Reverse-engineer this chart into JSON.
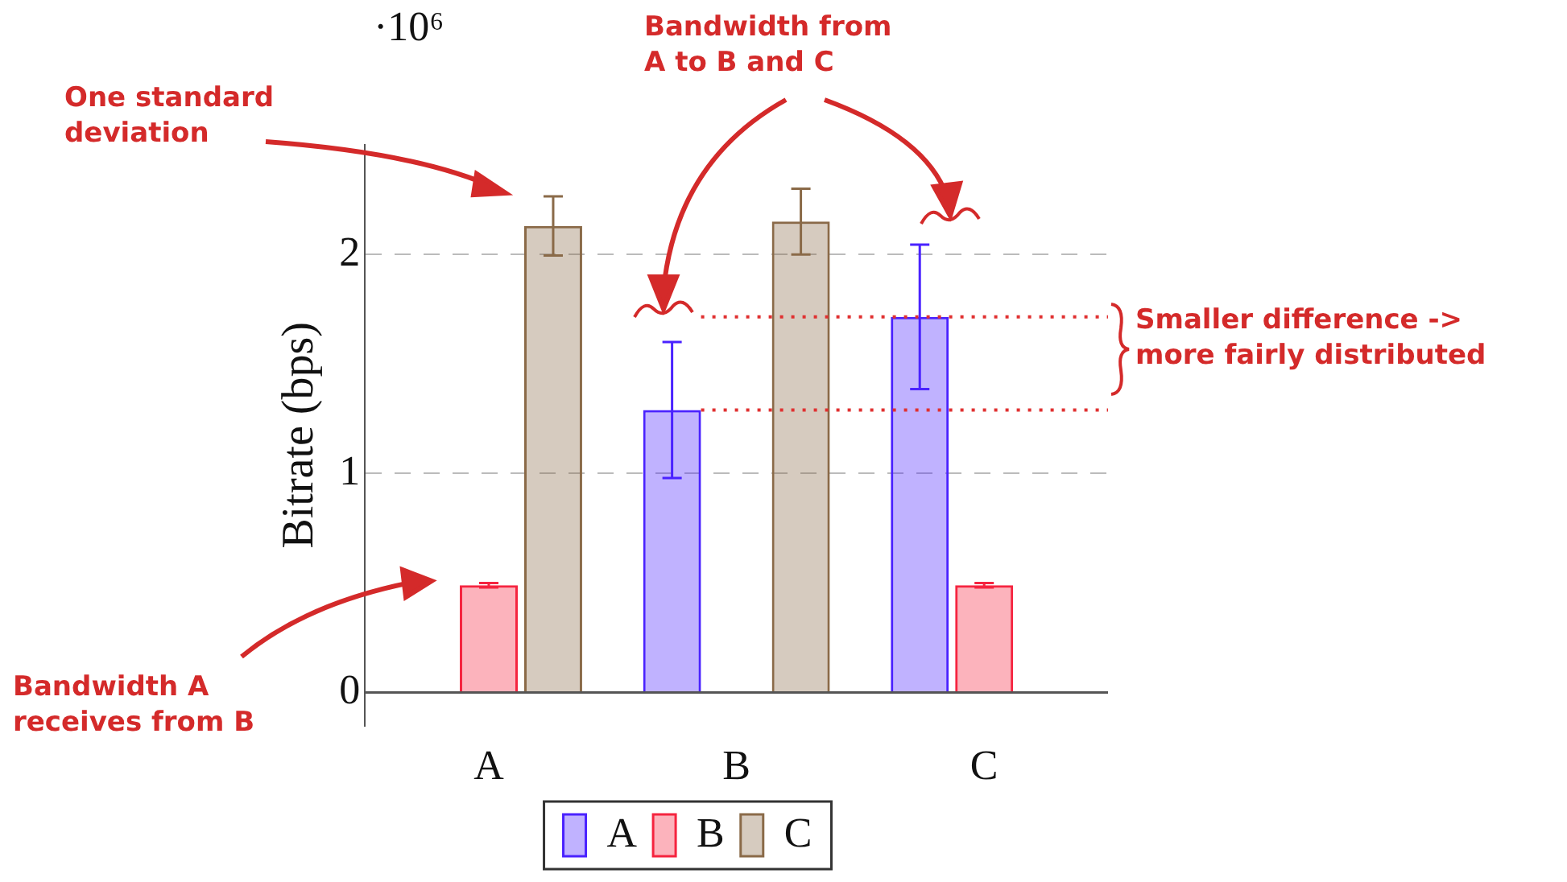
{
  "chart_data": {
    "type": "bar",
    "ylabel": "Bitrate (bps)",
    "categories": [
      "A",
      "B",
      "C"
    ],
    "series": [
      {
        "name": "A",
        "color": "#4a22ff",
        "values": [
          0,
          1.29,
          1.715
        ],
        "errors": [
          null,
          0.31,
          0.33
        ]
      },
      {
        "name": "B",
        "color": "#f5243f",
        "values": [
          0.49,
          0,
          0.49
        ],
        "errors": [
          0.01,
          null,
          0.01
        ]
      },
      {
        "name": "C",
        "color": "#8a6a48",
        "values": [
          2.13,
          2.15,
          0
        ],
        "errors": [
          0.135,
          0.15,
          null
        ]
      }
    ],
    "ylim": [
      -0.15,
      2.5
    ],
    "yticks": [
      0,
      1,
      2
    ],
    "grid": "y",
    "legend": "bottom",
    "ref_lines": [
      {
        "axis": "y",
        "value": 1.29,
        "color": "#e03030",
        "line_style": "dotted"
      },
      {
        "axis": "y",
        "value": 1.715,
        "color": "#e03030",
        "line_style": "dotted"
      }
    ],
    "annotations": [
      "·10⁶",
      "One standard\ndeviation",
      "Bandwidth from\nA to B and C",
      "Smaller difference ->\nmore fairly distributed",
      "Bandwidth A\nreceives from B"
    ]
  }
}
